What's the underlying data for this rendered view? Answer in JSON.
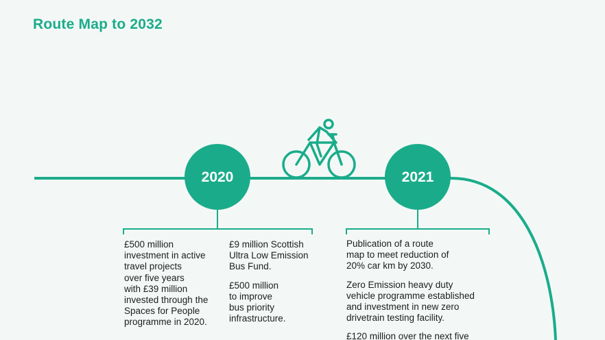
{
  "title": "Route Map to 2032",
  "colors": {
    "accent": "#1aac8a",
    "background": "#f3f8f6",
    "text": "#1d1d1d"
  },
  "timeline": {
    "icon": "bicycle-icon",
    "milestones": [
      {
        "year": "2020",
        "columns": [
          {
            "paragraphs": [
              "£500 million\ninvestment in active\ntravel projects\nover five years\nwith £39 million\ninvested through the\nSpaces for People\nprogramme in 2020."
            ]
          },
          {
            "paragraphs": [
              "£9 million Scottish\nUltra Low Emission\nBus Fund.",
              "£500 million\nto improve\nbus priority\ninfrastructure."
            ]
          }
        ]
      },
      {
        "year": "2021",
        "columns": [
          {
            "paragraphs": [
              "Publication of a route\nmap to meet reduction of\n20% car km by 2030.",
              "Zero Emission heavy duty\nvehicle programme established\nand investment in new zero\ndrivetrain testing facility.",
              "£120 million over the next five"
            ]
          }
        ]
      }
    ]
  }
}
